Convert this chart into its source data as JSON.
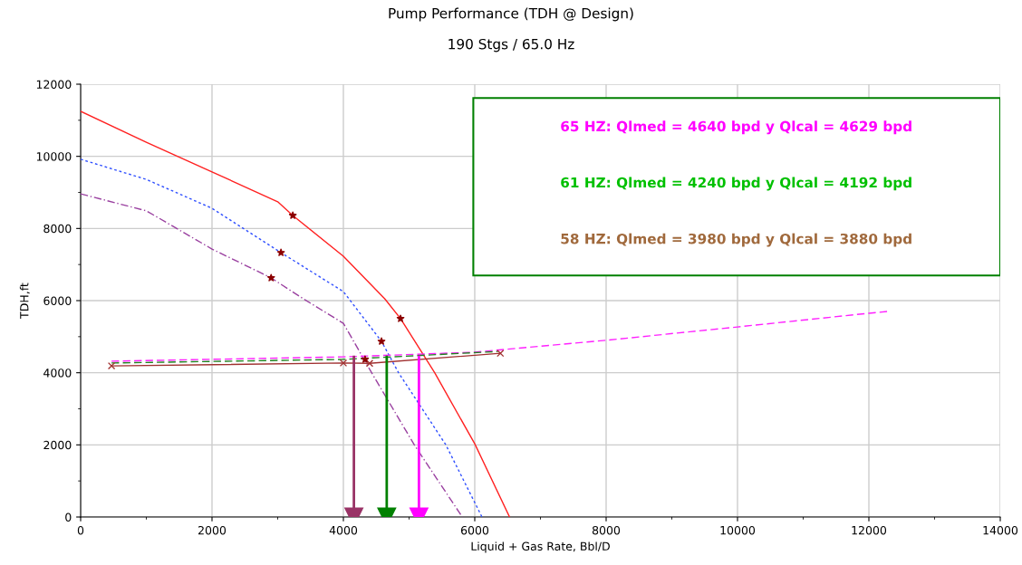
{
  "chart_data": {
    "type": "line",
    "title": "Pump Performance (TDH @ Design)",
    "subtitle": "190 Stgs / 65.0 Hz",
    "xlabel": "Liquid + Gas Rate, Bbl/D",
    "ylabel": "TDH,ft",
    "xlim": [
      0,
      14000
    ],
    "xticks": [
      0,
      2000,
      4000,
      6000,
      8000,
      10000,
      12000,
      14000
    ],
    "ylim": [
      0,
      12000
    ],
    "yticks": [
      0,
      2000,
      4000,
      6000,
      8000,
      10000,
      12000
    ],
    "grid": true,
    "annotations": [
      "65 HZ: Qlmed = 4640 bpd y Qlcal = 4629 bpd",
      "61 HZ: Qlmed = 4240 bpd y Qlcal = 4192 bpd",
      "58 HZ: Qlmed = 3980 bpd y Qlcal = 3880 bpd"
    ],
    "series": [
      {
        "type": "line",
        "color": "#ff2020",
        "line_style": "solid",
        "marker": "none",
        "x": [
          0,
          1000,
          2000,
          3000,
          3230,
          4000,
          4630,
          4870,
          5390,
          6000,
          6530
        ],
        "values": [
          11250,
          10390,
          9570,
          8740,
          8360,
          7230,
          6050,
          5500,
          4000,
          2030,
          0
        ]
      },
      {
        "type": "line",
        "color": "#3050ff",
        "line_style": "dotted",
        "marker": "none",
        "x": [
          0,
          1000,
          2000,
          3050,
          4000,
          4580,
          4840,
          5560,
          6110
        ],
        "values": [
          9920,
          9360,
          8560,
          7330,
          6250,
          4870,
          4000,
          2000,
          0
        ]
      },
      {
        "type": "line",
        "color": "#9a40a0",
        "line_style": "dashdot",
        "marker": "none",
        "x": [
          0,
          1000,
          2000,
          2900,
          3390,
          4000,
          4430,
          5080,
          5810
        ],
        "values": [
          8960,
          8490,
          7430,
          6630,
          6050,
          5370,
          4000,
          2000,
          0
        ]
      },
      {
        "type": "line",
        "color": "#ff20ff",
        "line_style": "dashed",
        "marker": "none",
        "x": [
          470,
          4000,
          6000,
          8000,
          10000,
          12000,
          12290
        ],
        "values": [
          4320,
          4440,
          4570,
          4900,
          5270,
          5650,
          5700
        ]
      },
      {
        "type": "line",
        "color": "#208020",
        "line_style": "dashed",
        "marker": "none",
        "x": [
          470,
          4000,
          6350
        ],
        "values": [
          4270,
          4370,
          4590
        ]
      },
      {
        "type": "line",
        "color": "#a03030",
        "line_style": "solid",
        "marker": "cross",
        "x": [
          470,
          4000,
          4400,
          6390
        ],
        "values": [
          4190,
          4270,
          4260,
          4540
        ]
      },
      {
        "type": "scatter",
        "color": "#8b0000",
        "marker": "star",
        "x": [
          3230,
          4870,
          3050,
          4580,
          2900,
          4330
        ],
        "values": [
          8360,
          5500,
          7330,
          4870,
          6630,
          4370
        ]
      },
      {
        "type": "line",
        "color": "#993366",
        "line_style": "solid",
        "marker": "triangle",
        "x": [
          4160,
          4160
        ],
        "values": [
          4440,
          0
        ]
      },
      {
        "type": "line",
        "color": "#008000",
        "line_style": "solid",
        "marker": "triangle",
        "x": [
          4660,
          4660
        ],
        "values": [
          4440,
          0
        ]
      },
      {
        "type": "line",
        "color": "#ff00ff",
        "line_style": "solid",
        "marker": "triangle",
        "x": [
          5150,
          5150
        ],
        "values": [
          4440,
          0
        ]
      }
    ]
  }
}
